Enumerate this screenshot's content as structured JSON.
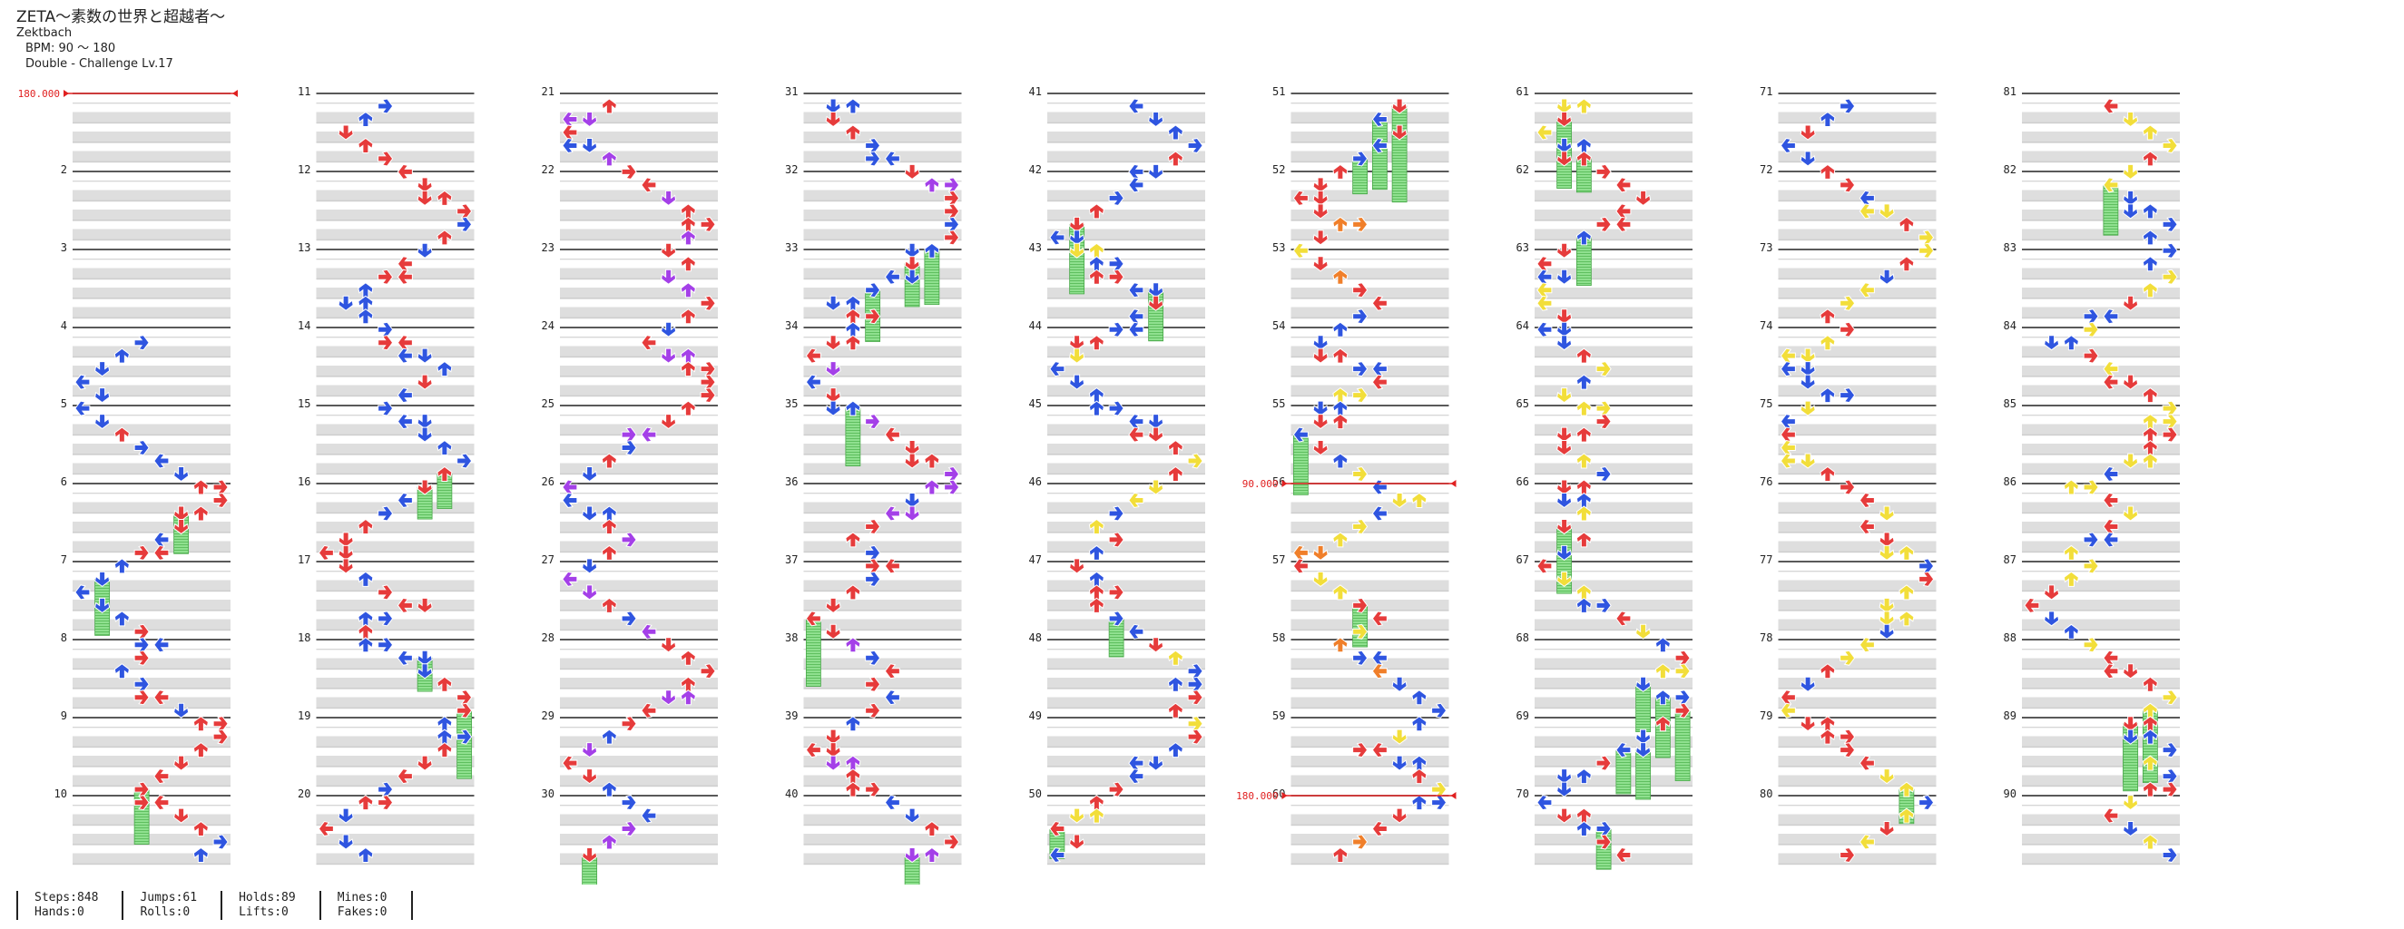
{
  "song": {
    "title": "ZETA～素数の世界と超越者～",
    "artist": "Zektbach",
    "bpm_text": "BPM: 90 ～ 180",
    "difficulty": "Double - Challenge Lv.17"
  },
  "measure_labels": [
    "",
    "2",
    "3",
    "4",
    "5",
    "6",
    "7",
    "8",
    "9",
    "10",
    "11",
    "12",
    "13",
    "14",
    "15",
    "16",
    "17",
    "18",
    "19",
    "20",
    "21",
    "22",
    "23",
    "24",
    "25",
    "26",
    "27",
    "28",
    "29",
    "30",
    "31",
    "32",
    "33",
    "34",
    "35",
    "36",
    "37",
    "38",
    "39",
    "40",
    "41",
    "42",
    "43",
    "44",
    "45",
    "46",
    "47",
    "48",
    "49",
    "50",
    "51",
    "52",
    "53",
    "54",
    "55",
    "56",
    "57",
    "58",
    "59",
    "60",
    "61",
    "62",
    "63",
    "64",
    "65",
    "66",
    "67",
    "68",
    "69",
    "70",
    "71",
    "72",
    "73",
    "74",
    "75",
    "76",
    "77",
    "78",
    "79",
    "80",
    "81",
    "82",
    "83",
    "84",
    "85",
    "86",
    "87",
    "88",
    "89",
    "90"
  ],
  "bpm_changes": [
    {
      "measure": 1,
      "label": "180.000"
    },
    {
      "measure": 56,
      "label": "90.000"
    },
    {
      "measure": 60,
      "label": "180.000"
    }
  ],
  "colors": {
    "quarter": "#e63b3b",
    "eighth": "#2f55e0",
    "twelfth": "#a440e8",
    "sixteenth": "#f2de3a",
    "twentyfourth": "#f07f2a",
    "hold_fill": "#8fe08f",
    "hold_stripe": "#5fbf5f",
    "lane_shade": "#dedede",
    "bpm_line": "#e02020"
  },
  "stats": {
    "steps": "Steps:848",
    "hands": "Hands:0",
    "jumps": "Jumps:61",
    "rolls": "Rolls:0",
    "holds": "Holds:89",
    "lifts": "Lifts:0",
    "mines": "Mines:0",
    "fakes": "Fakes:0"
  }
}
